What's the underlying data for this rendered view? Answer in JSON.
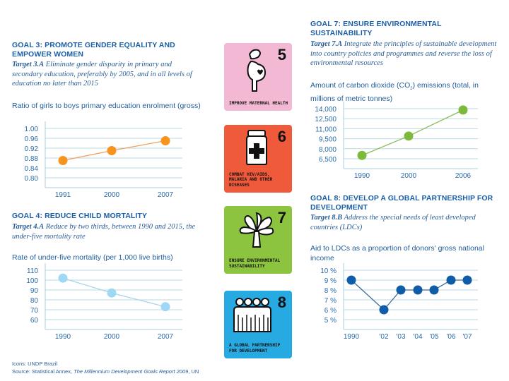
{
  "goal3": {
    "title": "GOAL 3: PROMOTE GENDER EQUALITY AND EMPOWER WOMEN",
    "target_label": "Target 3.A",
    "target_text": "Eliminate gender disparity in primary and secondary education, preferably by 2005, and in all levels of education no later than 2015",
    "metric": "Ratio of girls to boys primary education enrolment (gross)"
  },
  "goal4": {
    "title": "GOAL 4: REDUCE CHILD MORTALITY",
    "target_label": "Target 4.A",
    "target_text": "Reduce by two thirds, between 1990 and 2015, the under-five mortality rate",
    "metric": "Rate of under-five mortality (per 1,000 live births)"
  },
  "goal7": {
    "title": "GOAL 7: ENSURE ENVIRONMENTAL SUSTAINABILITY",
    "target_label": "Target 7.A",
    "target_text": "Integrate the principles of sustainable development into country policies and programmes and reverse the loss of environmental resources",
    "metric_pre": "Amount of carbon dioxide (CO",
    "metric_sub": "2",
    "metric_post": ") emissions (total, in millions of metric tonnes)"
  },
  "goal8": {
    "title": "GOAL 8: DEVELOP A GLOBAL PARTNERSHIP FOR DEVELOPMENT",
    "target_label": "Target 8.B",
    "target_text": "Address the special needs of least developed countries (LDCs)",
    "metric": "Aid to LDCs as a proportion of donors' gross national income"
  },
  "tiles": [
    {
      "number": "5",
      "label": "Improve maternal health",
      "icon": "pregnant-woman-icon",
      "color": "#f3b8d3"
    },
    {
      "number": "6",
      "label": "Combat HIV/AIDS, malaria and other diseases",
      "icon": "medicine-jar-icon",
      "color": "#ef5a3a"
    },
    {
      "number": "7",
      "label": "Ensure environmental sustainability",
      "icon": "tree-icon",
      "color": "#8cc43f"
    },
    {
      "number": "8",
      "label": "A global partnership for development",
      "icon": "people-group-icon",
      "color": "#27a9e1"
    }
  ],
  "footer": {
    "icons_credit": "Icons: UNDP Brazil",
    "source_pre": "Source: Statistical Annex, ",
    "source_title": "The Millennium Development Goals Report 2009",
    "source_post": ", UN"
  },
  "chart_data": [
    {
      "id": "goal3",
      "type": "line",
      "title": "Ratio of girls to boys primary education enrolment (gross)",
      "xlabel": "",
      "ylabel": "",
      "categories": [
        "1991",
        "2000",
        "2007"
      ],
      "values": [
        0.87,
        0.91,
        0.95
      ],
      "yticks": [
        1.0,
        0.96,
        0.92,
        0.88,
        0.84,
        0.8
      ],
      "ytick_labels": [
        "1.00",
        "0.96",
        "0.92",
        "0.88",
        "0.84",
        "0.80"
      ],
      "ylim": [
        0.76,
        1.0
      ],
      "grid": true,
      "color": "#f7941d",
      "line_color": "#f0a060"
    },
    {
      "id": "goal4",
      "type": "line",
      "title": "Rate of under-five mortality (per 1,000 live births)",
      "xlabel": "",
      "ylabel": "",
      "categories": [
        "1990",
        "2000",
        "2007"
      ],
      "values": [
        102,
        87,
        73
      ],
      "yticks": [
        110,
        100,
        90,
        80,
        70,
        60
      ],
      "ytick_labels": [
        "110",
        "100",
        "90",
        "80",
        "70",
        "60"
      ],
      "ylim": [
        50,
        110
      ],
      "grid": true,
      "color": "#9fd8f5",
      "line_color": "#a8d4ec"
    },
    {
      "id": "goal7",
      "type": "line",
      "title": "Amount of carbon dioxide (CO2) emissions (total, in millions of metric tonnes)",
      "xlabel": "",
      "ylabel": "",
      "categories": [
        "1990",
        "2000",
        "2006"
      ],
      "values": [
        7000,
        9900,
        13800
      ],
      "yticks": [
        14000,
        12500,
        11000,
        9500,
        8000,
        6500
      ],
      "ytick_labels": [
        "14,000",
        "12,500",
        "11,000",
        "9,500",
        "8,000",
        "6,500"
      ],
      "ylim": [
        5000,
        14000
      ],
      "grid": true,
      "color": "#7dba3b",
      "line_color": "#8cbb5a"
    },
    {
      "id": "goal8",
      "type": "line",
      "title": "Aid to LDCs as a proportion of donors' gross national income",
      "xlabel": "",
      "ylabel": "",
      "categories": [
        "1990",
        "'02",
        "'03",
        "'04",
        "'05",
        "'06",
        "'07"
      ],
      "values": [
        9,
        6,
        8,
        8,
        8,
        9,
        9
      ],
      "yticks": [
        10,
        9,
        8,
        7,
        6,
        5
      ],
      "ytick_labels": [
        "10 %",
        "9 %",
        "8 %",
        "7 %",
        "6 %",
        "5 %"
      ],
      "ylim": [
        4,
        10
      ],
      "grid": true,
      "color": "#0f5ca8",
      "line_color": "#3a6a9a"
    }
  ]
}
